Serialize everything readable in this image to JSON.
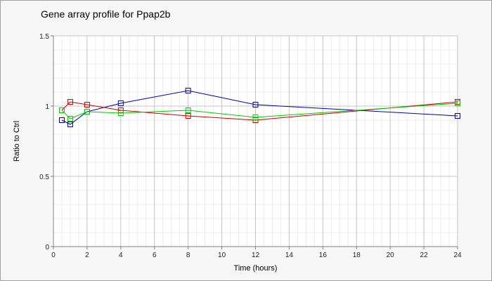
{
  "chart_data": {
    "type": "line",
    "title": "Gene array profile for Ppap2b",
    "xlabel": "Time (hours)",
    "ylabel": "Ratio to Ctrl",
    "xlim": [
      0,
      24
    ],
    "ylim": [
      0,
      1.5
    ],
    "x_ticks": [
      "0",
      "2",
      "4",
      "6",
      "8",
      "10",
      "12",
      "14",
      "16",
      "18",
      "20",
      "22",
      "24"
    ],
    "y_ticks": [
      "0",
      "0.5",
      "1",
      "1.5"
    ],
    "grid": true,
    "background": "#f7f7f7",
    "plot_background": "#ffffff",
    "series": [
      {
        "color": "#0000aa",
        "x": [
          0.5,
          1,
          2,
          4,
          8,
          12,
          24
        ],
        "values": [
          0.9,
          0.87,
          0.96,
          1.02,
          1.11,
          1.01,
          0.93
        ]
      },
      {
        "color": "#cc0000",
        "x": [
          0.5,
          1,
          2,
          4,
          8,
          12,
          24
        ],
        "values": [
          0.97,
          1.03,
          1.01,
          0.97,
          0.93,
          0.9,
          1.03
        ]
      },
      {
        "color": "#00cc00",
        "x": [
          0.5,
          1,
          2,
          4,
          8,
          12,
          24
        ],
        "values": [
          0.97,
          0.91,
          0.96,
          0.95,
          0.97,
          0.92,
          1.02
        ]
      }
    ]
  }
}
